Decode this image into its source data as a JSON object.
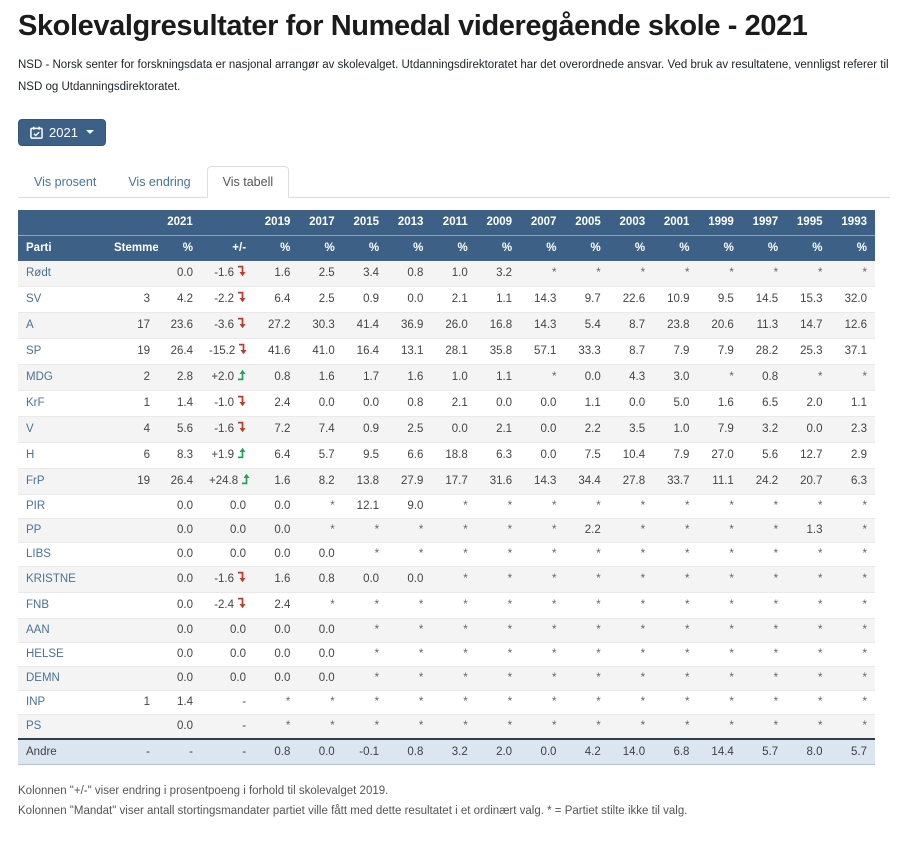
{
  "header": {
    "title": "Skolevalgresultater for Numedal videregående skole - 2021",
    "description": "NSD - Norsk senter for forskningsdata er nasjonal arrangør av skolevalget. Utdanningsdirektoratet har det overordnede ansvar. Ved bruk av resultatene, vennligst referer til NSD og Utdanningsdirektoratet."
  },
  "year_selector": {
    "label": "2021",
    "icon": "calendar-icon",
    "caret_icon": "caret-down-icon"
  },
  "tabs": [
    {
      "label": "Vis prosent",
      "active": false
    },
    {
      "label": "Vis endring",
      "active": false
    },
    {
      "label": "Vis tabell",
      "active": true
    }
  ],
  "table": {
    "current_year": "2021",
    "years": [
      "2019",
      "2017",
      "2015",
      "2013",
      "2011",
      "2009",
      "2007",
      "2005",
      "2003",
      "2001",
      "1999",
      "1997",
      "1995",
      "1993"
    ],
    "columns": {
      "parti": "Parti",
      "stemmer": "Stemmer",
      "pct": "%",
      "change": "+/-",
      "year_pct": "%"
    },
    "rows": [
      {
        "party": "Rødt",
        "stemmer": "",
        "pct": "0.0",
        "change": "-1.6",
        "dir": "down",
        "years": [
          "1.6",
          "2.5",
          "3.4",
          "0.8",
          "1.0",
          "3.2",
          "*",
          "*",
          "*",
          "*",
          "*",
          "*",
          "*",
          "*"
        ]
      },
      {
        "party": "SV",
        "stemmer": "3",
        "pct": "4.2",
        "change": "-2.2",
        "dir": "down",
        "years": [
          "6.4",
          "2.5",
          "0.9",
          "0.0",
          "2.1",
          "1.1",
          "14.3",
          "9.7",
          "22.6",
          "10.9",
          "9.5",
          "14.5",
          "15.3",
          "32.0"
        ]
      },
      {
        "party": "A",
        "stemmer": "17",
        "pct": "23.6",
        "change": "-3.6",
        "dir": "down",
        "years": [
          "27.2",
          "30.3",
          "41.4",
          "36.9",
          "26.0",
          "16.8",
          "14.3",
          "5.4",
          "8.7",
          "23.8",
          "20.6",
          "11.3",
          "14.7",
          "12.6"
        ]
      },
      {
        "party": "SP",
        "stemmer": "19",
        "pct": "26.4",
        "change": "-15.2",
        "dir": "down",
        "years": [
          "41.6",
          "41.0",
          "16.4",
          "13.1",
          "28.1",
          "35.8",
          "57.1",
          "33.3",
          "8.7",
          "7.9",
          "7.9",
          "28.2",
          "25.3",
          "37.1"
        ]
      },
      {
        "party": "MDG",
        "stemmer": "2",
        "pct": "2.8",
        "change": "+2.0",
        "dir": "up",
        "years": [
          "0.8",
          "1.6",
          "1.7",
          "1.6",
          "1.0",
          "1.1",
          "*",
          "0.0",
          "4.3",
          "3.0",
          "*",
          "0.8",
          "*",
          "*"
        ]
      },
      {
        "party": "KrF",
        "stemmer": "1",
        "pct": "1.4",
        "change": "-1.0",
        "dir": "down",
        "years": [
          "2.4",
          "0.0",
          "0.0",
          "0.8",
          "2.1",
          "0.0",
          "0.0",
          "1.1",
          "0.0",
          "5.0",
          "1.6",
          "6.5",
          "2.0",
          "1.1"
        ]
      },
      {
        "party": "V",
        "stemmer": "4",
        "pct": "5.6",
        "change": "-1.6",
        "dir": "down",
        "years": [
          "7.2",
          "7.4",
          "0.9",
          "2.5",
          "0.0",
          "2.1",
          "0.0",
          "2.2",
          "3.5",
          "1.0",
          "7.9",
          "3.2",
          "0.0",
          "2.3"
        ]
      },
      {
        "party": "H",
        "stemmer": "6",
        "pct": "8.3",
        "change": "+1.9",
        "dir": "up",
        "years": [
          "6.4",
          "5.7",
          "9.5",
          "6.6",
          "18.8",
          "6.3",
          "0.0",
          "7.5",
          "10.4",
          "7.9",
          "27.0",
          "5.6",
          "12.7",
          "2.9"
        ]
      },
      {
        "party": "FrP",
        "stemmer": "19",
        "pct": "26.4",
        "change": "+24.8",
        "dir": "up",
        "years": [
          "1.6",
          "8.2",
          "13.8",
          "27.9",
          "17.7",
          "31.6",
          "14.3",
          "34.4",
          "27.8",
          "33.7",
          "11.1",
          "24.2",
          "20.7",
          "6.3"
        ]
      },
      {
        "party": "PIR",
        "stemmer": "",
        "pct": "0.0",
        "change": "0.0",
        "dir": null,
        "years": [
          "0.0",
          "*",
          "12.1",
          "9.0",
          "*",
          "*",
          "*",
          "*",
          "*",
          "*",
          "*",
          "*",
          "*",
          "*"
        ]
      },
      {
        "party": "PP",
        "stemmer": "",
        "pct": "0.0",
        "change": "0.0",
        "dir": null,
        "years": [
          "0.0",
          "*",
          "*",
          "*",
          "*",
          "*",
          "*",
          "2.2",
          "*",
          "*",
          "*",
          "*",
          "1.3",
          "*"
        ]
      },
      {
        "party": "LIBS",
        "stemmer": "",
        "pct": "0.0",
        "change": "0.0",
        "dir": null,
        "years": [
          "0.0",
          "0.0",
          "*",
          "*",
          "*",
          "*",
          "*",
          "*",
          "*",
          "*",
          "*",
          "*",
          "*",
          "*"
        ]
      },
      {
        "party": "KRISTNE",
        "stemmer": "",
        "pct": "0.0",
        "change": "-1.6",
        "dir": "down",
        "years": [
          "1.6",
          "0.8",
          "0.0",
          "0.0",
          "*",
          "*",
          "*",
          "*",
          "*",
          "*",
          "*",
          "*",
          "*",
          "*"
        ]
      },
      {
        "party": "FNB",
        "stemmer": "",
        "pct": "0.0",
        "change": "-2.4",
        "dir": "down",
        "years": [
          "2.4",
          "*",
          "*",
          "*",
          "*",
          "*",
          "*",
          "*",
          "*",
          "*",
          "*",
          "*",
          "*",
          "*"
        ]
      },
      {
        "party": "AAN",
        "stemmer": "",
        "pct": "0.0",
        "change": "0.0",
        "dir": null,
        "years": [
          "0.0",
          "0.0",
          "*",
          "*",
          "*",
          "*",
          "*",
          "*",
          "*",
          "*",
          "*",
          "*",
          "*",
          "*"
        ]
      },
      {
        "party": "HELSE",
        "stemmer": "",
        "pct": "0.0",
        "change": "0.0",
        "dir": null,
        "years": [
          "0.0",
          "0.0",
          "*",
          "*",
          "*",
          "*",
          "*",
          "*",
          "*",
          "*",
          "*",
          "*",
          "*",
          "*"
        ]
      },
      {
        "party": "DEMN",
        "stemmer": "",
        "pct": "0.0",
        "change": "0.0",
        "dir": null,
        "years": [
          "0.0",
          "0.0",
          "*",
          "*",
          "*",
          "*",
          "*",
          "*",
          "*",
          "*",
          "*",
          "*",
          "*",
          "*"
        ]
      },
      {
        "party": "INP",
        "stemmer": "1",
        "pct": "1.4",
        "change": "-",
        "dir": null,
        "years": [
          "*",
          "*",
          "*",
          "*",
          "*",
          "*",
          "*",
          "*",
          "*",
          "*",
          "*",
          "*",
          "*",
          "*"
        ]
      },
      {
        "party": "PS",
        "stemmer": "",
        "pct": "0.0",
        "change": "-",
        "dir": null,
        "years": [
          "*",
          "*",
          "*",
          "*",
          "*",
          "*",
          "*",
          "*",
          "*",
          "*",
          "*",
          "*",
          "*",
          "*"
        ]
      }
    ],
    "total_row": {
      "party": "Andre",
      "stemmer": "-",
      "pct": "-",
      "change": "-",
      "dir": null,
      "years": [
        "0.8",
        "0.0",
        "-0.1",
        "0.8",
        "3.2",
        "2.0",
        "0.0",
        "4.2",
        "14.0",
        "6.8",
        "14.4",
        "5.7",
        "8.0",
        "5.7"
      ]
    }
  },
  "footnotes": [
    "Kolonnen \"+/-\" viser endring i prosentpoeng i forhold til skolevalget 2019.",
    "Kolonnen \"Mandat\" viser antall stortingsmandater partiet ville fått med dette resultatet i et ordinært valg. * = Partiet stilte ikke til valg."
  ],
  "colors": {
    "header_bg": "#3d6186",
    "link_blue": "#4a7396",
    "arrow_down": "#c0392b",
    "arrow_up": "#27a05c",
    "total_row_bg": "#dce6f1",
    "row_alt_bg": "#f4f4f4"
  }
}
